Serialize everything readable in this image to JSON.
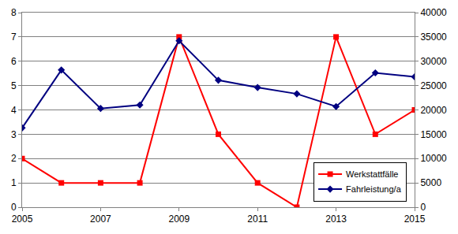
{
  "chart_data": {
    "type": "line",
    "x": [
      2005,
      2006,
      2007,
      2008,
      2009,
      2010,
      2011,
      2012,
      2013,
      2014,
      2015
    ],
    "xlim": [
      2005,
      2015
    ],
    "xticks": [
      2005,
      2007,
      2009,
      2011,
      2013,
      2015
    ],
    "ylim": [
      0,
      8
    ],
    "yticks": [
      0,
      1,
      2,
      3,
      4,
      5,
      6,
      7,
      8
    ],
    "y2lim": [
      0,
      40000
    ],
    "y2ticks": [
      0,
      5000,
      10000,
      15000,
      20000,
      25000,
      30000,
      35000,
      40000
    ],
    "grid": true,
    "legend": "lower right",
    "series": [
      {
        "name": "Werkstattfälle",
        "color": "#ff0000",
        "marker": "square",
        "line_style": "solid",
        "values": [
          2,
          1,
          1,
          1,
          7,
          3,
          1,
          0,
          7,
          3,
          4
        ]
      },
      {
        "name": "Fahrleistung/a",
        "color": "#000080",
        "marker": "diamond",
        "line_style": "solid",
        "axis": "y2",
        "values": [
          16300,
          28200,
          20300,
          21000,
          34200,
          26100,
          24600,
          23300,
          20700,
          27600,
          26800
        ]
      }
    ]
  }
}
